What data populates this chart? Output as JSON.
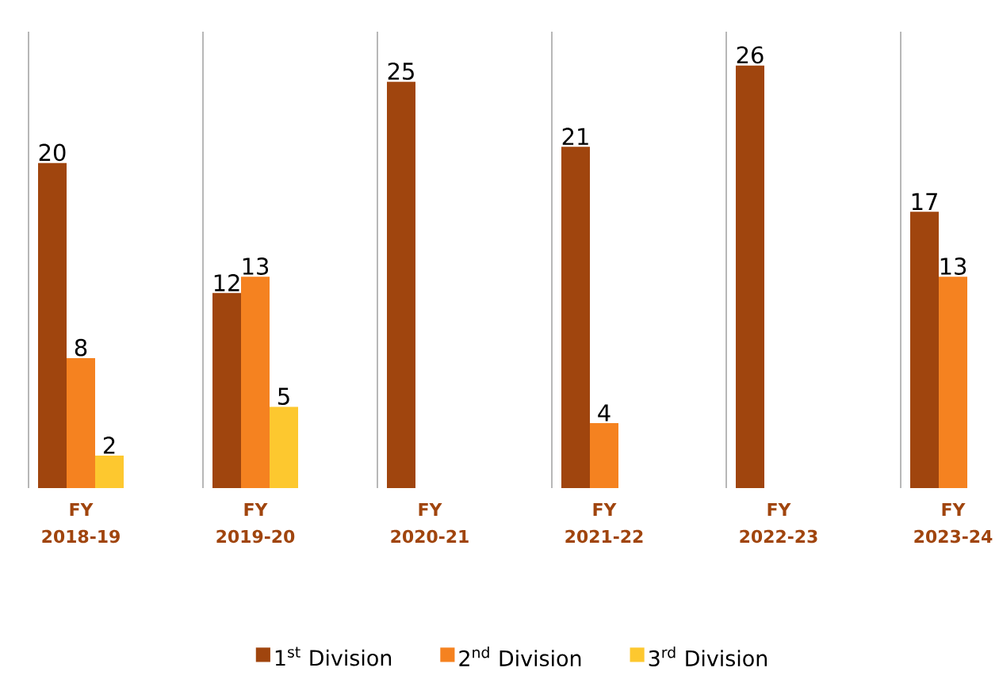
{
  "chart_data": {
    "type": "bar",
    "categories": [
      "FY 2018-19",
      "FY 2019-20",
      "FY 2020-21",
      "FY 2021-22",
      "FY 2022-23",
      "FY 2023-24"
    ],
    "series": [
      {
        "name": "1$^{st}$ Division",
        "color": "#a0450e",
        "values": [
          20,
          12,
          25,
          21,
          26,
          17
        ]
      },
      {
        "name": "2$^{nd}$ Division",
        "color": "#f58220",
        "values": [
          8,
          13,
          null,
          4,
          null,
          13
        ]
      },
      {
        "name": "3$^{rd}$ Division",
        "color": "#fdc82f",
        "values": [
          2,
          5,
          null,
          null,
          null,
          null
        ]
      }
    ],
    "data_labels": true,
    "grid": "x",
    "legend": "bottom"
  }
}
